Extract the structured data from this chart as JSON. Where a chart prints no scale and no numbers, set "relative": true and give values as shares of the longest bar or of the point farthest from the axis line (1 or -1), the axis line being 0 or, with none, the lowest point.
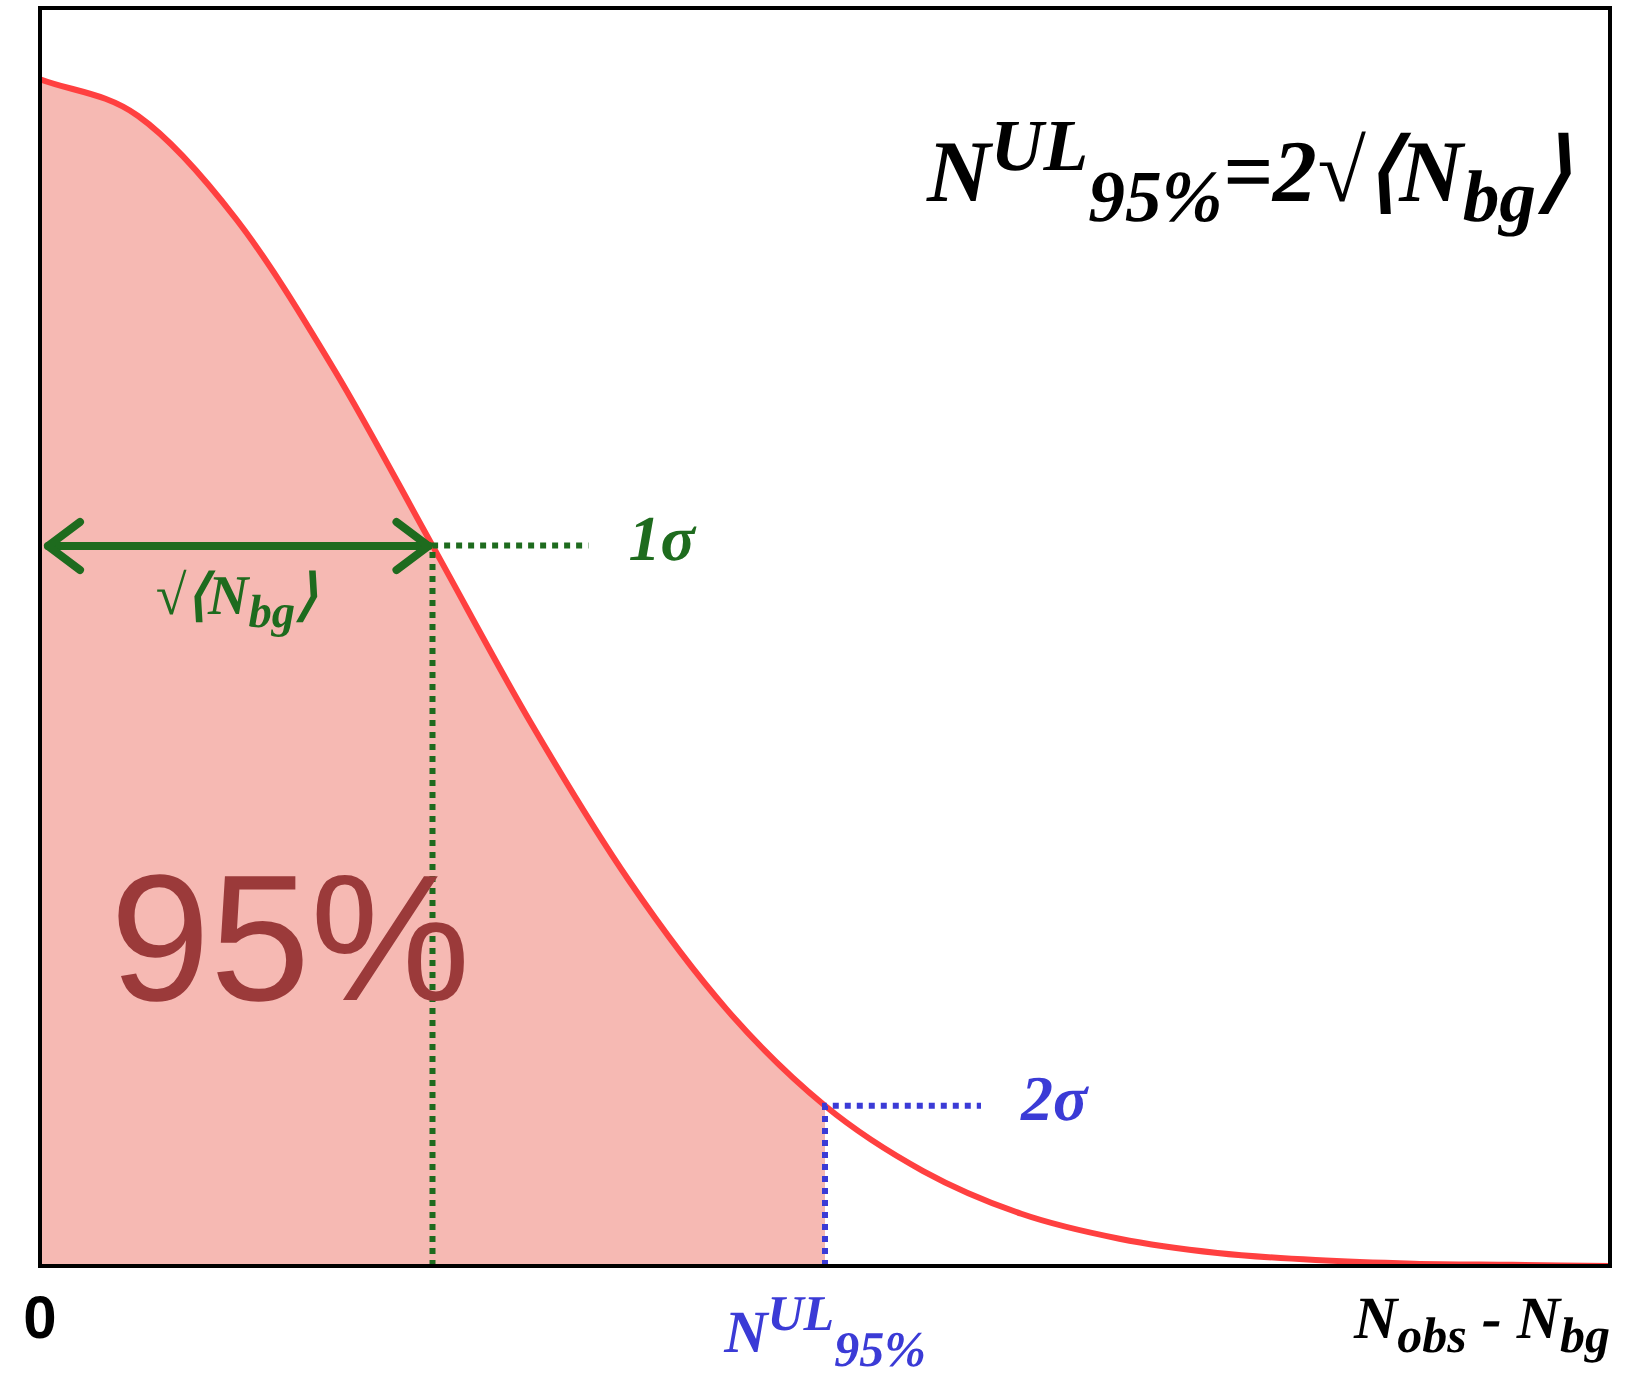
{
  "chart_data": {
    "type": "line",
    "relative": true,
    "xlabel": "N$_{obs}$ - N$_{bg}$",
    "categories": [
      null,
      null,
      null,
      null,
      null,
      null,
      null,
      null,
      null,
      null,
      null,
      null,
      null,
      null,
      null,
      null,
      null
    ],
    "grid": false,
    "legend": false,
    "marker": "none",
    "series": [
      {
        "color": "#ff4040",
        "values": [
          1,
          0.969,
          0.882,
          0.755,
          0.607,
          0.458,
          0.325,
          0.216,
          0.135,
          0.08,
          0.044,
          0.023,
          0.011,
          0.005,
          0.002,
          0.001,
          0
        ]
      },
      {
        "type": "area",
        "color": "#f08a80",
        "values": [
          1,
          0.969,
          0.882,
          0.755,
          0.607,
          0.458,
          0.325,
          0.216,
          0.135,
          null,
          null,
          null,
          null,
          null,
          null,
          null,
          null
        ]
      }
    ],
    "ref_lines": [
      {
        "axis": "y",
        "value": 0.607,
        "label": "1σ",
        "color": "#1e6b1e",
        "line_style": "dotted"
      },
      {
        "axis": "y",
        "value": 0.135,
        "label": "2σ",
        "color": "#3b3bd6",
        "line_style": "dotted"
      }
    ],
    "annotations": [
      "N$^{UL}$$_{95%}$=2√⟨N$_{bg}$⟩",
      "95%",
      "√⟨N$_{bg}$⟩",
      "0",
      "N$^{UL}$$_{95%}$"
    ]
  }
}
